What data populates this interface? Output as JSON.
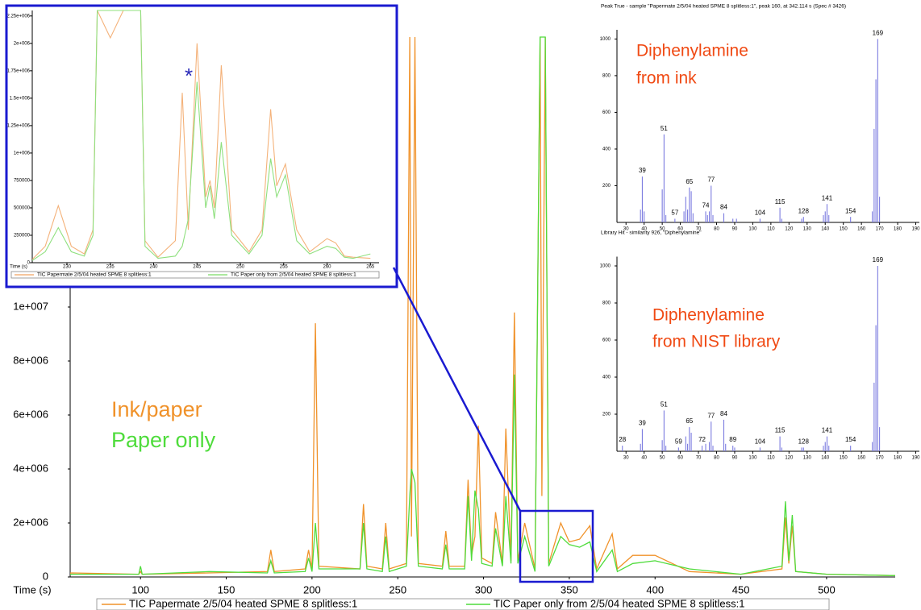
{
  "chart_data": [
    {
      "type": "line",
      "x_label": "Time (s)",
      "x": [
        52,
        60,
        99,
        100,
        101,
        140,
        174,
        176,
        178,
        196,
        198,
        200,
        202,
        204,
        228,
        230,
        232,
        241,
        243,
        245,
        255,
        257,
        258,
        260,
        262,
        276,
        278,
        280,
        289,
        291,
        293,
        295,
        297,
        299,
        305,
        307,
        311,
        313,
        316,
        318,
        320,
        324,
        330,
        333,
        334,
        336,
        338,
        345,
        350,
        356,
        362,
        366,
        375,
        378,
        387,
        400,
        420,
        450,
        474,
        476,
        478,
        480,
        482,
        500,
        540
      ],
      "series": [
        {
          "name": "TIC Papermate 2/5/04 heated SPME 8 splitless:1",
          "color": "#f0922a",
          "values": [
            100000,
            150000,
            100000,
            200000,
            100000,
            150000,
            200000,
            1000000,
            200000,
            300000,
            1000000,
            300000,
            9400000,
            400000,
            300000,
            2700000,
            400000,
            300000,
            2000000,
            300000,
            500000,
            20000000,
            1500000,
            20000000,
            500000,
            400000,
            1700000,
            400000,
            400000,
            3600000,
            800000,
            1500000,
            5600000,
            700000,
            500000,
            2400000,
            500000,
            5500000,
            600000,
            9800000,
            600000,
            2000000,
            300000,
            20000000,
            3000000,
            20000000,
            500000,
            2000000,
            1300000,
            1400000,
            1900000,
            300000,
            1600000,
            300000,
            800000,
            800000,
            200000,
            100000,
            300000,
            2200000,
            500000,
            1900000,
            200000,
            100000,
            50000
          ]
        },
        {
          "name": "TIC Paper only from 2/5/04 heated SPME 8 splitless:1",
          "color": "#4fdc3c",
          "values": [
            80000,
            100000,
            100000,
            400000,
            100000,
            200000,
            150000,
            600000,
            150000,
            200000,
            700000,
            200000,
            2000000,
            300000,
            300000,
            2000000,
            300000,
            200000,
            1500000,
            200000,
            400000,
            3000000,
            4000000,
            3500000,
            400000,
            300000,
            1200000,
            300000,
            300000,
            3000000,
            600000,
            3200000,
            2500000,
            500000,
            400000,
            1800000,
            400000,
            3000000,
            500000,
            7500000,
            500000,
            1500000,
            200000,
            20000000,
            20000000,
            20000000,
            400000,
            1500000,
            1200000,
            1100000,
            1300000,
            200000,
            1000000,
            200000,
            500000,
            600000,
            300000,
            100000,
            400000,
            2800000,
            600000,
            2300000,
            200000,
            100000,
            50000
          ]
        }
      ],
      "xlim": [
        59,
        540
      ],
      "xticks": [
        100,
        150,
        200,
        250,
        300,
        350,
        400,
        450,
        500
      ],
      "ylim": [
        0,
        20000000
      ],
      "yticks": [
        0,
        {
          "value": 2000000,
          "label": "2e+006"
        },
        {
          "value": 4000000,
          "label": "4e+006"
        },
        {
          "value": 6000000,
          "label": "6e+006"
        },
        {
          "value": 8000000,
          "label": "8e+006"
        },
        {
          "value": 10000000,
          "label": "1e+007"
        }
      ],
      "annotations": [
        {
          "text": "Ink/paper",
          "color": "#f0922a"
        },
        {
          "text": "Paper only",
          "color": "#4fdc3c"
        }
      ]
    },
    {
      "type": "line",
      "x_label": "Time (s)",
      "x": [
        226,
        227.5,
        229,
        230.5,
        232,
        233,
        233.5,
        235,
        236.5,
        238.5,
        239,
        240.5,
        242.5,
        243.3,
        244,
        245,
        246,
        246.5,
        247,
        247.8,
        249,
        251,
        252.5,
        253.5,
        254.2,
        255.2,
        256.5,
        258,
        260,
        261,
        262,
        263,
        265
      ],
      "series": [
        {
          "name": "TIC Papermate 2/5/04 heated SPME 8 splitless:1",
          "color": "#f4b27a",
          "values": [
            30000,
            150000,
            520000,
            150000,
            80000,
            300000,
            2300000,
            2050000,
            2300000,
            2300000,
            200000,
            50000,
            200000,
            1550000,
            300000,
            2000000,
            600000,
            750000,
            500000,
            1800000,
            300000,
            100000,
            300000,
            1400000,
            700000,
            900000,
            300000,
            100000,
            220000,
            180000,
            60000,
            50000,
            40000
          ]
        },
        {
          "name": "TIC Paper only from 2/5/04 heated SPME 8 splitless:1",
          "color": "#8fe07e",
          "values": [
            20000,
            100000,
            320000,
            100000,
            60000,
            250000,
            2300000,
            2300000,
            2300000,
            2300000,
            150000,
            40000,
            60000,
            150000,
            400000,
            1650000,
            500000,
            700000,
            400000,
            1100000,
            250000,
            80000,
            250000,
            950000,
            600000,
            800000,
            200000,
            80000,
            150000,
            130000,
            50000,
            40000,
            80000
          ]
        }
      ],
      "xlim": [
        226,
        266
      ],
      "xticks": [
        230,
        235,
        240,
        245,
        250,
        255,
        260,
        265
      ],
      "ylim": [
        0,
        2300000
      ],
      "yticks": [
        0,
        250000,
        500000,
        750000,
        {
          "value": 1000000,
          "label": "1e+006"
        },
        {
          "value": 1250000,
          "label": "1.25e+006"
        },
        {
          "value": 1500000,
          "label": "1.5e+006"
        },
        {
          "value": 1750000,
          "label": "1.75e+006"
        },
        {
          "value": 2000000,
          "label": "2e+006"
        },
        {
          "value": 2250000,
          "label": "2.25e+006"
        }
      ],
      "annotations": [
        {
          "text": "*",
          "color": "#2a2ab8"
        }
      ]
    },
    {
      "type": "bar",
      "title": "Peak True - sample \"Papermate 2/5/04 heated SPME 8 splitless:1\", peak 160, at 342.114 s (Spec # 3426)",
      "color": "#7c7ce0",
      "x": [
        38,
        39,
        40,
        50,
        51,
        52,
        57,
        62,
        63,
        64,
        65,
        66,
        67,
        74,
        75,
        76,
        77,
        78,
        84,
        89,
        91,
        104,
        115,
        116,
        127,
        128,
        139,
        140,
        141,
        142,
        154,
        166,
        167,
        168,
        169,
        170
      ],
      "values": [
        70,
        250,
        60,
        180,
        480,
        40,
        20,
        60,
        140,
        70,
        190,
        170,
        50,
        60,
        40,
        60,
        200,
        40,
        50,
        20,
        20,
        20,
        80,
        20,
        20,
        30,
        40,
        60,
        100,
        40,
        30,
        60,
        510,
        780,
        1000,
        140
      ],
      "peak_labels": [
        39,
        51,
        57,
        65,
        74,
        77,
        84,
        104,
        115,
        128,
        141,
        154,
        169
      ],
      "xlim": [
        25,
        192
      ],
      "xticks": [
        30,
        40,
        50,
        60,
        70,
        80,
        90,
        100,
        110,
        120,
        130,
        140,
        150,
        160,
        170,
        180,
        190
      ],
      "ylim": [
        0,
        1050
      ],
      "yticks": [
        200,
        400,
        600,
        800,
        1000
      ],
      "annotations": [
        {
          "text": "Diphenylamine",
          "color": "#f04a14"
        },
        {
          "text": "from ink",
          "color": "#f04a14"
        }
      ]
    },
    {
      "type": "bar",
      "title": "Library Hit - similarity 926, \"Diphenylamine\"",
      "color": "#7c7ce0",
      "x": [
        28,
        38,
        39,
        50,
        51,
        52,
        59,
        63,
        64,
        65,
        66,
        72,
        74,
        76,
        77,
        78,
        84,
        85,
        89,
        90,
        104,
        115,
        116,
        127,
        128,
        139,
        140,
        141,
        142,
        154,
        166,
        167,
        168,
        169,
        170
      ],
      "values": [
        30,
        40,
        120,
        60,
        220,
        30,
        20,
        80,
        40,
        130,
        100,
        30,
        40,
        50,
        160,
        30,
        170,
        40,
        30,
        20,
        20,
        80,
        20,
        20,
        20,
        30,
        50,
        80,
        30,
        30,
        50,
        370,
        680,
        1000,
        130
      ],
      "peak_labels": [
        28,
        39,
        51,
        59,
        65,
        72,
        77,
        84,
        89,
        104,
        115,
        128,
        141,
        154,
        169
      ],
      "xlim": [
        25,
        192
      ],
      "xticks": [
        30,
        40,
        50,
        60,
        70,
        80,
        90,
        100,
        110,
        120,
        130,
        140,
        150,
        160,
        170,
        180,
        190
      ],
      "ylim": [
        0,
        1050
      ],
      "yticks": [
        200,
        400,
        600,
        800,
        1000
      ],
      "annotations": [
        {
          "text": "Diphenylamine",
          "color": "#f04a14"
        },
        {
          "text": "from NIST library",
          "color": "#f04a14"
        }
      ]
    }
  ]
}
